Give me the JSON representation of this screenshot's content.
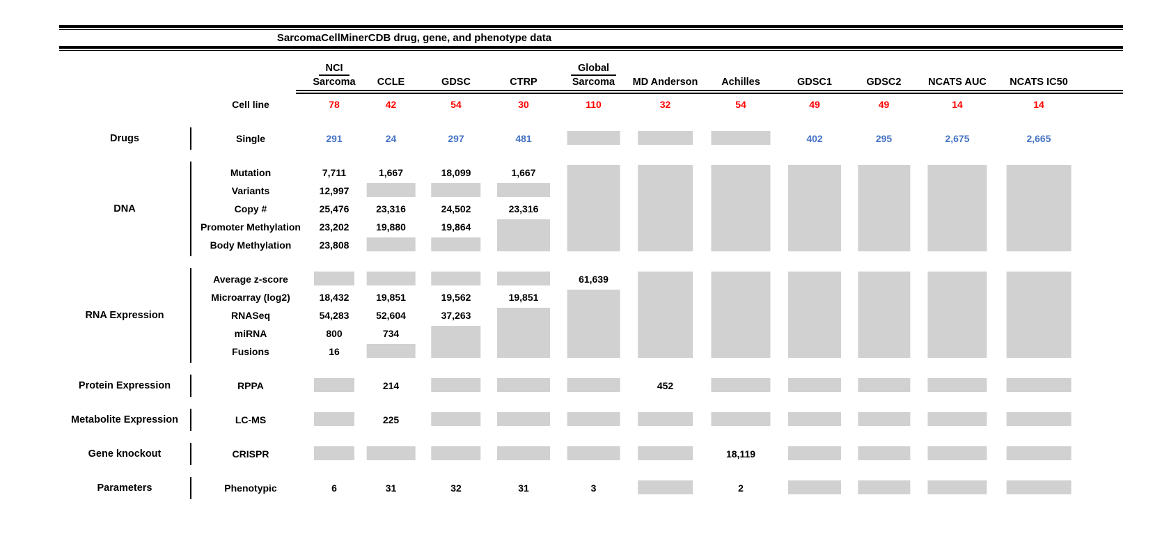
{
  "colors": {
    "red": "#ff0000",
    "blue": "#4472c4",
    "gray_box": "#d1d1d1",
    "line": "#000000"
  },
  "chart_data": {
    "type": "table",
    "title": "SarcomaCellMinerCDB drug, gene, and phenotype data",
    "columns": [
      {
        "top": "NCI",
        "label": "Sarcoma"
      },
      {
        "label": "CCLE"
      },
      {
        "label": "GDSC"
      },
      {
        "label": "CTRP"
      },
      {
        "top": "Global",
        "label": "Sarcoma"
      },
      {
        "label": "MD Anderson"
      },
      {
        "label": "Achilles"
      },
      {
        "label": "GDSC1"
      },
      {
        "label": "GDSC2"
      },
      {
        "label": "NCATS AUC"
      },
      {
        "label": "NCATS IC50"
      }
    ],
    "cell_line": {
      "label": "Cell line",
      "counts": [
        "78",
        "42",
        "54",
        "30",
        "110",
        "32",
        "54",
        "49",
        "49",
        "14",
        "14"
      ]
    },
    "gray_box_meaning": "data not available",
    "sections": [
      {
        "category": "Drugs",
        "rows": [
          {
            "label": "Single",
            "color": "blue",
            "cells": [
              "291",
              "24",
              "297",
              "481",
              {
                "box": 1
              },
              {
                "box": 1
              },
              {
                "box": 1
              },
              "402",
              "295",
              "2,675",
              "2,665"
            ]
          }
        ]
      },
      {
        "category": "DNA",
        "rows": [
          {
            "label": "Mutation",
            "cells": [
              "7,711",
              "1,667",
              "18,099",
              "1,667",
              {
                "box": 5
              },
              {
                "box": 5
              },
              {
                "box": 5
              },
              {
                "box": 5
              },
              {
                "box": 5
              },
              {
                "box": 5
              },
              {
                "box": 5
              }
            ]
          },
          {
            "label": "Variants",
            "cells": [
              "12,997",
              {
                "box": 1
              },
              {
                "box": 1
              },
              {
                "box": 1
              },
              null,
              null,
              null,
              null,
              null,
              null,
              null
            ]
          },
          {
            "label": "Copy #",
            "cells": [
              "25,476",
              "23,316",
              "24,502",
              "23,316",
              null,
              null,
              null,
              null,
              null,
              null,
              null
            ]
          },
          {
            "label": "Promoter Methylation",
            "cells": [
              "23,202",
              "19,880",
              "19,864",
              {
                "box": 2
              },
              null,
              null,
              null,
              null,
              null,
              null,
              null
            ]
          },
          {
            "label": "Body Methylation",
            "cells": [
              "23,808",
              {
                "box": 1
              },
              {
                "box": 1
              },
              null,
              null,
              null,
              null,
              null,
              null,
              null,
              null
            ]
          }
        ]
      },
      {
        "category": "RNA Expression",
        "rows": [
          {
            "label": "Average z-score",
            "cells": [
              {
                "box": 1
              },
              {
                "box": 1
              },
              {
                "box": 1
              },
              {
                "box": 1
              },
              "61,639",
              {
                "box": 5
              },
              {
                "box": 5
              },
              {
                "box": 5
              },
              {
                "box": 5
              },
              {
                "box": 5
              },
              {
                "box": 5
              }
            ]
          },
          {
            "label": "Microarray (log2)",
            "cells": [
              "18,432",
              "19,851",
              "19,562",
              "19,851",
              {
                "box": 4
              },
              null,
              null,
              null,
              null,
              null,
              null
            ]
          },
          {
            "label": "RNASeq",
            "cells": [
              "54,283",
              "52,604",
              "37,263",
              {
                "box": 3
              },
              null,
              null,
              null,
              null,
              null,
              null,
              null
            ]
          },
          {
            "label": "miRNA",
            "cells": [
              "800",
              "734",
              {
                "box": 2
              },
              null,
              null,
              null,
              null,
              null,
              null,
              null,
              null
            ]
          },
          {
            "label": "Fusions",
            "cells": [
              "16",
              {
                "box": 1
              },
              null,
              null,
              null,
              null,
              null,
              null,
              null,
              null,
              null
            ]
          }
        ]
      },
      {
        "category": "Protein Expression",
        "rows": [
          {
            "label": "RPPA",
            "cells": [
              {
                "box": 1
              },
              "214",
              {
                "box": 1
              },
              {
                "box": 1
              },
              {
                "box": 1
              },
              "452",
              {
                "box": 1
              },
              {
                "box": 1
              },
              {
                "box": 1
              },
              {
                "box": 1
              },
              {
                "box": 1
              }
            ]
          }
        ]
      },
      {
        "category": "Metabolite Expression",
        "rows": [
          {
            "label": "LC-MS",
            "cells": [
              {
                "box": 1
              },
              "225",
              {
                "box": 1
              },
              {
                "box": 1
              },
              {
                "box": 1
              },
              {
                "box": 1
              },
              {
                "box": 1
              },
              {
                "box": 1
              },
              {
                "box": 1
              },
              {
                "box": 1
              },
              {
                "box": 1
              }
            ]
          }
        ]
      },
      {
        "category": "Gene knockout",
        "rows": [
          {
            "label": "CRISPR",
            "cells": [
              {
                "box": 1
              },
              {
                "box": 1
              },
              {
                "box": 1
              },
              {
                "box": 1
              },
              {
                "box": 1
              },
              {
                "box": 1
              },
              "18,119",
              {
                "box": 1
              },
              {
                "box": 1
              },
              {
                "box": 1
              },
              {
                "box": 1
              }
            ]
          }
        ]
      },
      {
        "category": "Parameters",
        "rows": [
          {
            "label": "Phenotypic",
            "cells": [
              "6",
              "31",
              "32",
              "31",
              "3",
              {
                "box": 1
              },
              "2",
              {
                "box": 1
              },
              {
                "box": 1
              },
              {
                "box": 1
              },
              {
                "box": 1
              }
            ]
          }
        ]
      }
    ]
  }
}
